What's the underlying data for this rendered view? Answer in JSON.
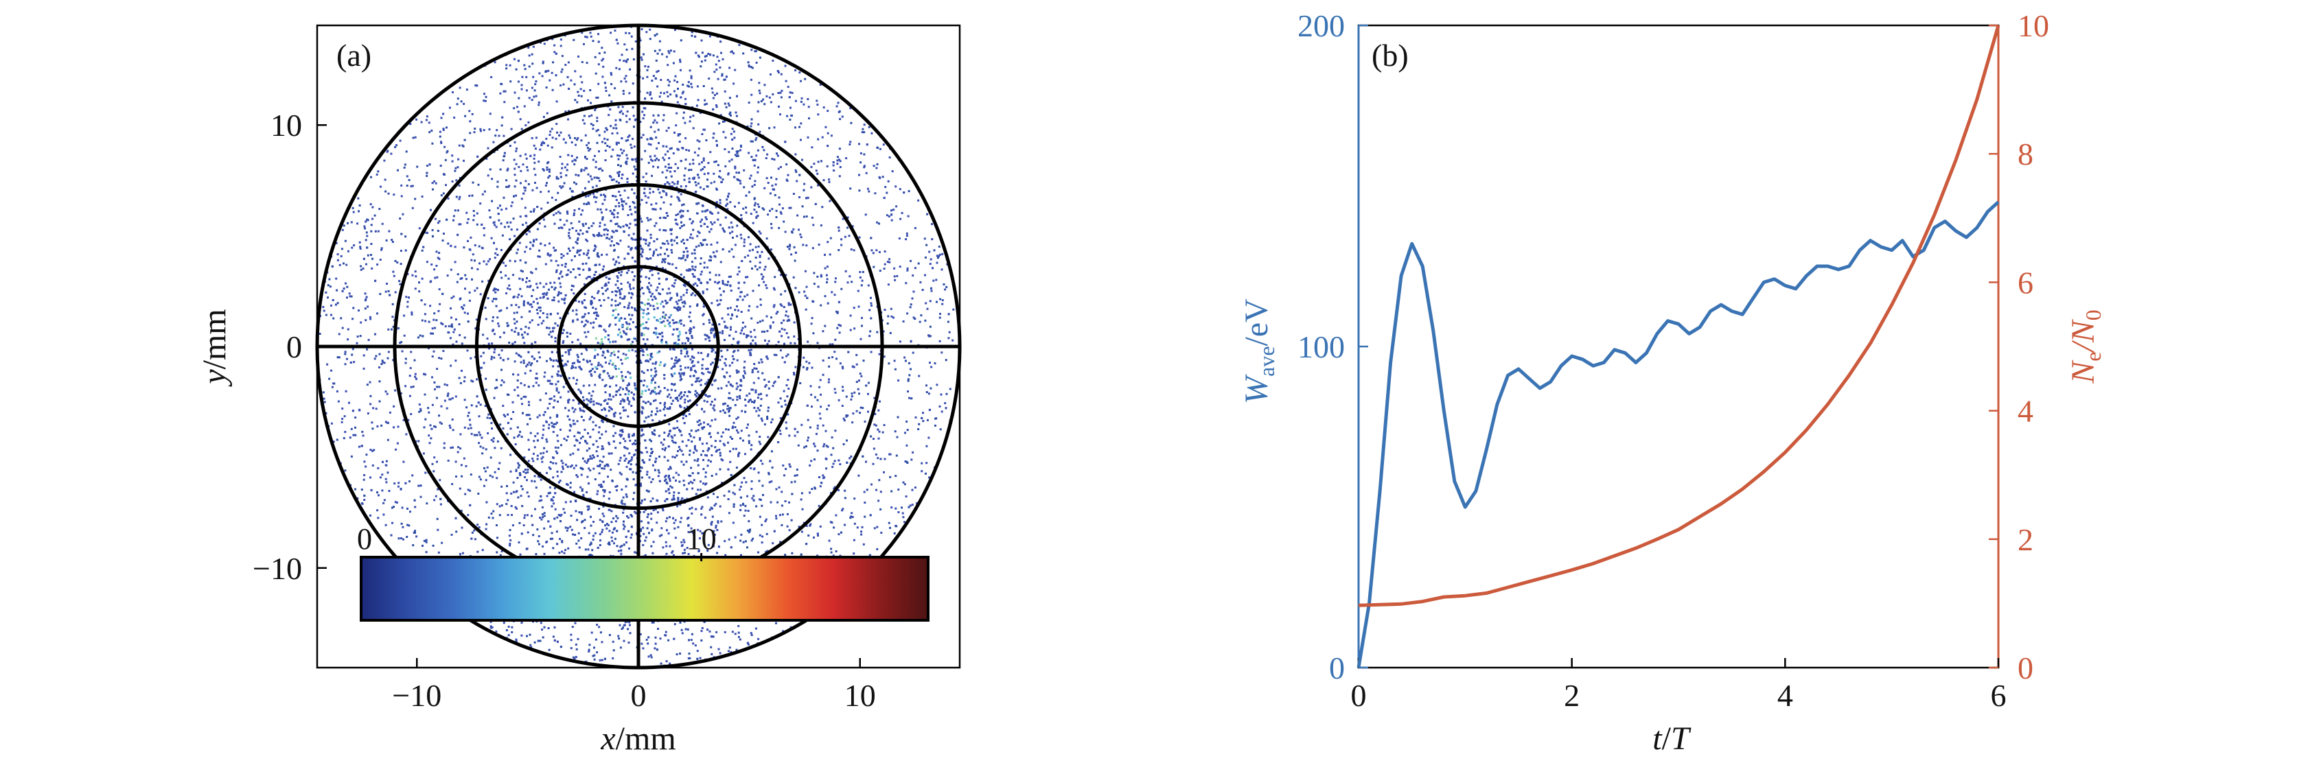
{
  "chart_data": [
    {
      "panel_label": "(a)",
      "type": "scatter",
      "xlabel": "x/mm",
      "ylabel": "y/mm",
      "xlim": [
        -14.5,
        14.5
      ],
      "ylim": [
        -14.5,
        14.5
      ],
      "xticks": [
        "−10",
        "0",
        "10"
      ],
      "yticks": [
        "10",
        "0",
        "−10"
      ],
      "circle_radii_mm": [
        3.6,
        7.3,
        11.0,
        14.5
      ],
      "colorbar": {
        "min_label": "0",
        "mid_label": "10",
        "colors": [
          "#1c2a7a",
          "#2e4da6",
          "#3b6fc4",
          "#4a9fd8",
          "#5fc6d6",
          "#7ccf9c",
          "#a9d86a",
          "#e3e23c",
          "#f0a23a",
          "#e9582d",
          "#d12a2a",
          "#8a1c1c",
          "#4e1313"
        ]
      },
      "point_color": "#3a4fb0",
      "grid": true
    },
    {
      "panel_label": "(b)",
      "type": "line",
      "xlabel": "t/T",
      "xlim": [
        0,
        6
      ],
      "xticks": [
        "0",
        "2",
        "4",
        "6"
      ],
      "ylabel_left": {
        "main": "W",
        "sub": "ave",
        "rest": "/eV"
      },
      "ylim_left": [
        0,
        200
      ],
      "yticks_left": [
        "0",
        "100",
        "200"
      ],
      "ylabel_right": {
        "a": "N",
        "sub_a": "e",
        "b": "/N",
        "sub_b": "0"
      },
      "ylim_right": [
        0,
        10
      ],
      "yticks_right": [
        "0",
        "2",
        "4",
        "6",
        "8",
        "10"
      ],
      "left_color": "#3b74b4",
      "right_color": "#cc5a3c",
      "series": [
        {
          "axis": "left",
          "x": [
            0,
            0.1,
            0.2,
            0.3,
            0.4,
            0.5,
            0.6,
            0.7,
            0.8,
            0.9,
            1.0,
            1.1,
            1.2,
            1.3,
            1.4,
            1.5,
            1.6,
            1.7,
            1.8,
            1.9,
            2.0,
            2.1,
            2.2,
            2.3,
            2.4,
            2.5,
            2.6,
            2.7,
            2.8,
            2.9,
            3.0,
            3.1,
            3.2,
            3.3,
            3.4,
            3.5,
            3.6,
            3.7,
            3.8,
            3.9,
            4.0,
            4.1,
            4.2,
            4.3,
            4.4,
            4.5,
            4.6,
            4.7,
            4.8,
            4.9,
            5.0,
            5.1,
            5.2,
            5.3,
            5.4,
            5.5,
            5.6,
            5.7,
            5.8,
            5.9,
            6.0
          ],
          "y": [
            0,
            20,
            55,
            95,
            122,
            132,
            125,
            105,
            80,
            58,
            50,
            55,
            68,
            82,
            91,
            93,
            90,
            87,
            89,
            94,
            97,
            96,
            94,
            95,
            99,
            98,
            95,
            98,
            104,
            108,
            107,
            104,
            106,
            111,
            113,
            111,
            110,
            115,
            120,
            121,
            119,
            118,
            122,
            125,
            125,
            124,
            125,
            130,
            133,
            131,
            130,
            133,
            128,
            130,
            137,
            139,
            136,
            134,
            137,
            142,
            145
          ]
        },
        {
          "axis": "right",
          "x": [
            0,
            0.2,
            0.4,
            0.6,
            0.8,
            1.0,
            1.2,
            1.4,
            1.6,
            1.8,
            2.0,
            2.2,
            2.4,
            2.6,
            2.8,
            3.0,
            3.2,
            3.4,
            3.6,
            3.8,
            4.0,
            4.2,
            4.4,
            4.6,
            4.8,
            5.0,
            5.2,
            5.4,
            5.6,
            5.8,
            6.0
          ],
          "y": [
            0.97,
            0.98,
            0.99,
            1.03,
            1.1,
            1.12,
            1.16,
            1.25,
            1.34,
            1.43,
            1.52,
            1.62,
            1.74,
            1.86,
            2.0,
            2.15,
            2.35,
            2.55,
            2.78,
            3.05,
            3.35,
            3.7,
            4.1,
            4.55,
            5.05,
            5.65,
            6.3,
            7.05,
            7.9,
            8.85,
            10.0
          ]
        }
      ]
    }
  ]
}
